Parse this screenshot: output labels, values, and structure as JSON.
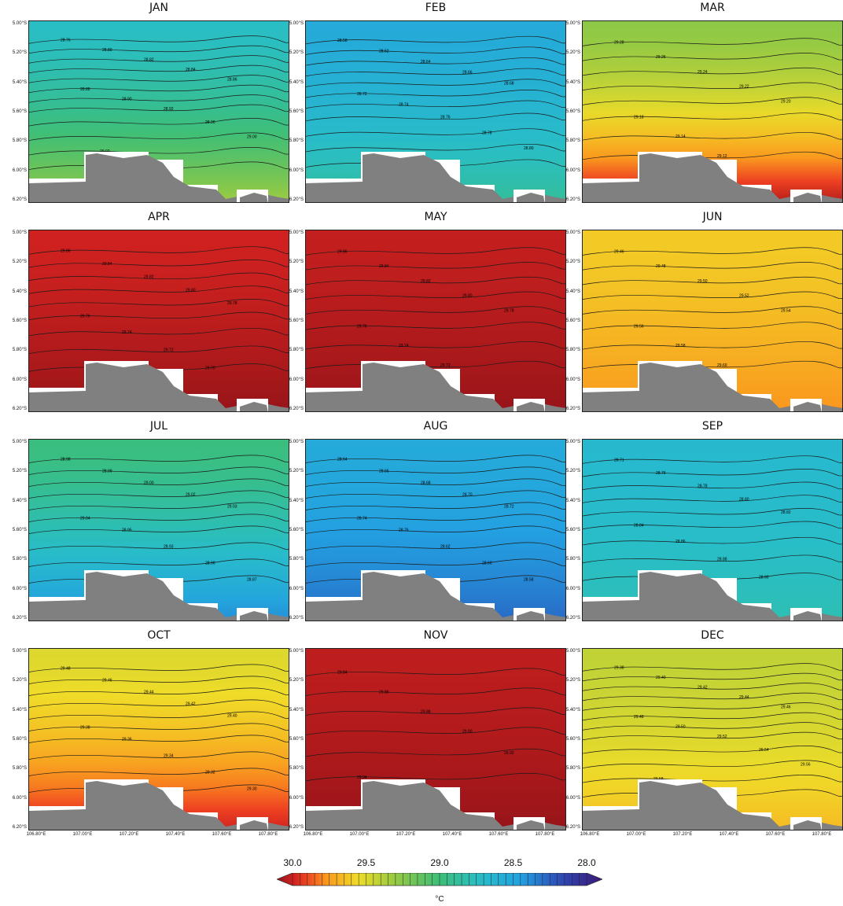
{
  "chart_data": {
    "type": "heatmap",
    "unit": "°C",
    "lat_ticks": [
      "5.00°S",
      "5.20°S",
      "5.40°S",
      "5.60°S",
      "5.80°S",
      "6.00°S",
      "6.20°S"
    ],
    "lon_ticks": [
      "106.80°E",
      "107.00°E",
      "107.20°E",
      "107.40°E",
      "107.60°E",
      "107.80°E"
    ],
    "lat_range": [
      -6.25,
      -5.0
    ],
    "lon_range": [
      106.77,
      107.97
    ],
    "colorbar": {
      "min": 28.0,
      "max": 30.0,
      "reversed": true,
      "tick_labels": [
        "30.0",
        "29.5",
        "29.0",
        "28.5",
        "28.0"
      ]
    },
    "panels": [
      {
        "month": "JAN",
        "north_value": 28.76,
        "south_value": 29.3,
        "contour_labels": [
          "28.76",
          "28.80",
          "28.82",
          "28.84",
          "28.86",
          "28.88",
          "28.90",
          "28.92",
          "28.96",
          "29.00",
          "29.02",
          "29.27"
        ]
      },
      {
        "month": "FEB",
        "north_value": 28.58,
        "south_value": 28.9,
        "contour_labels": [
          "28.58",
          "28.62",
          "28.64",
          "28.66",
          "28.68",
          "28.72",
          "28.74",
          "28.76",
          "28.78",
          "28.80",
          "28.82"
        ]
      },
      {
        "month": "MAR",
        "north_value": 29.25,
        "south_value": 29.95,
        "contour_labels": [
          "29.28",
          "29.26",
          "29.24",
          "29.22",
          "29.20",
          "29.18",
          "29.14",
          "29.12"
        ]
      },
      {
        "month": "APR",
        "north_value": 29.9,
        "south_value": 30.0,
        "contour_labels": [
          "29.86",
          "29.84",
          "29.82",
          "29.80",
          "29.78",
          "29.76",
          "29.74",
          "29.72",
          "29.70"
        ]
      },
      {
        "month": "MAY",
        "north_value": 29.92,
        "south_value": 30.0,
        "contour_labels": [
          "29.86",
          "29.84",
          "29.82",
          "29.80",
          "29.78",
          "29.76",
          "29.74",
          "29.72"
        ]
      },
      {
        "month": "JUN",
        "north_value": 29.55,
        "south_value": 29.7,
        "contour_labels": [
          "29.46",
          "29.48",
          "29.50",
          "29.52",
          "29.54",
          "29.56",
          "29.58",
          "29.60"
        ]
      },
      {
        "month": "JUL",
        "north_value": 28.98,
        "south_value": 28.45,
        "contour_labels": [
          "28.98",
          "28.99",
          "29.00",
          "29.02",
          "29.03",
          "29.04",
          "28.95",
          "28.93",
          "28.90",
          "28.87"
        ]
      },
      {
        "month": "AUG",
        "north_value": 28.58,
        "south_value": 28.35,
        "contour_labels": [
          "28.64",
          "28.66",
          "28.68",
          "28.70",
          "28.72",
          "28.74",
          "28.76",
          "28.62",
          "28.60",
          "28.58"
        ]
      },
      {
        "month": "SEP",
        "north_value": 28.7,
        "south_value": 28.82,
        "contour_labels": [
          "28.71",
          "28.76",
          "28.78",
          "28.80",
          "28.82",
          "28.84",
          "28.86",
          "28.88",
          "28.90"
        ]
      },
      {
        "month": "OCT",
        "north_value": 29.45,
        "south_value": 29.9,
        "contour_labels": [
          "29.48",
          "29.46",
          "29.44",
          "29.42",
          "29.40",
          "29.38",
          "29.36",
          "29.34",
          "29.32",
          "29.30"
        ]
      },
      {
        "month": "NOV",
        "north_value": 29.93,
        "south_value": 30.0,
        "contour_labels": [
          "29.84",
          "29.86",
          "29.88",
          "29.90",
          "29.92",
          "29.94"
        ]
      },
      {
        "month": "DEC",
        "north_value": 29.38,
        "south_value": 29.6,
        "contour_labels": [
          "29.38",
          "29.40",
          "29.42",
          "29.44",
          "29.46",
          "29.48",
          "29.50",
          "29.52",
          "29.54",
          "29.56",
          "29.58",
          "29.60"
        ]
      }
    ]
  }
}
